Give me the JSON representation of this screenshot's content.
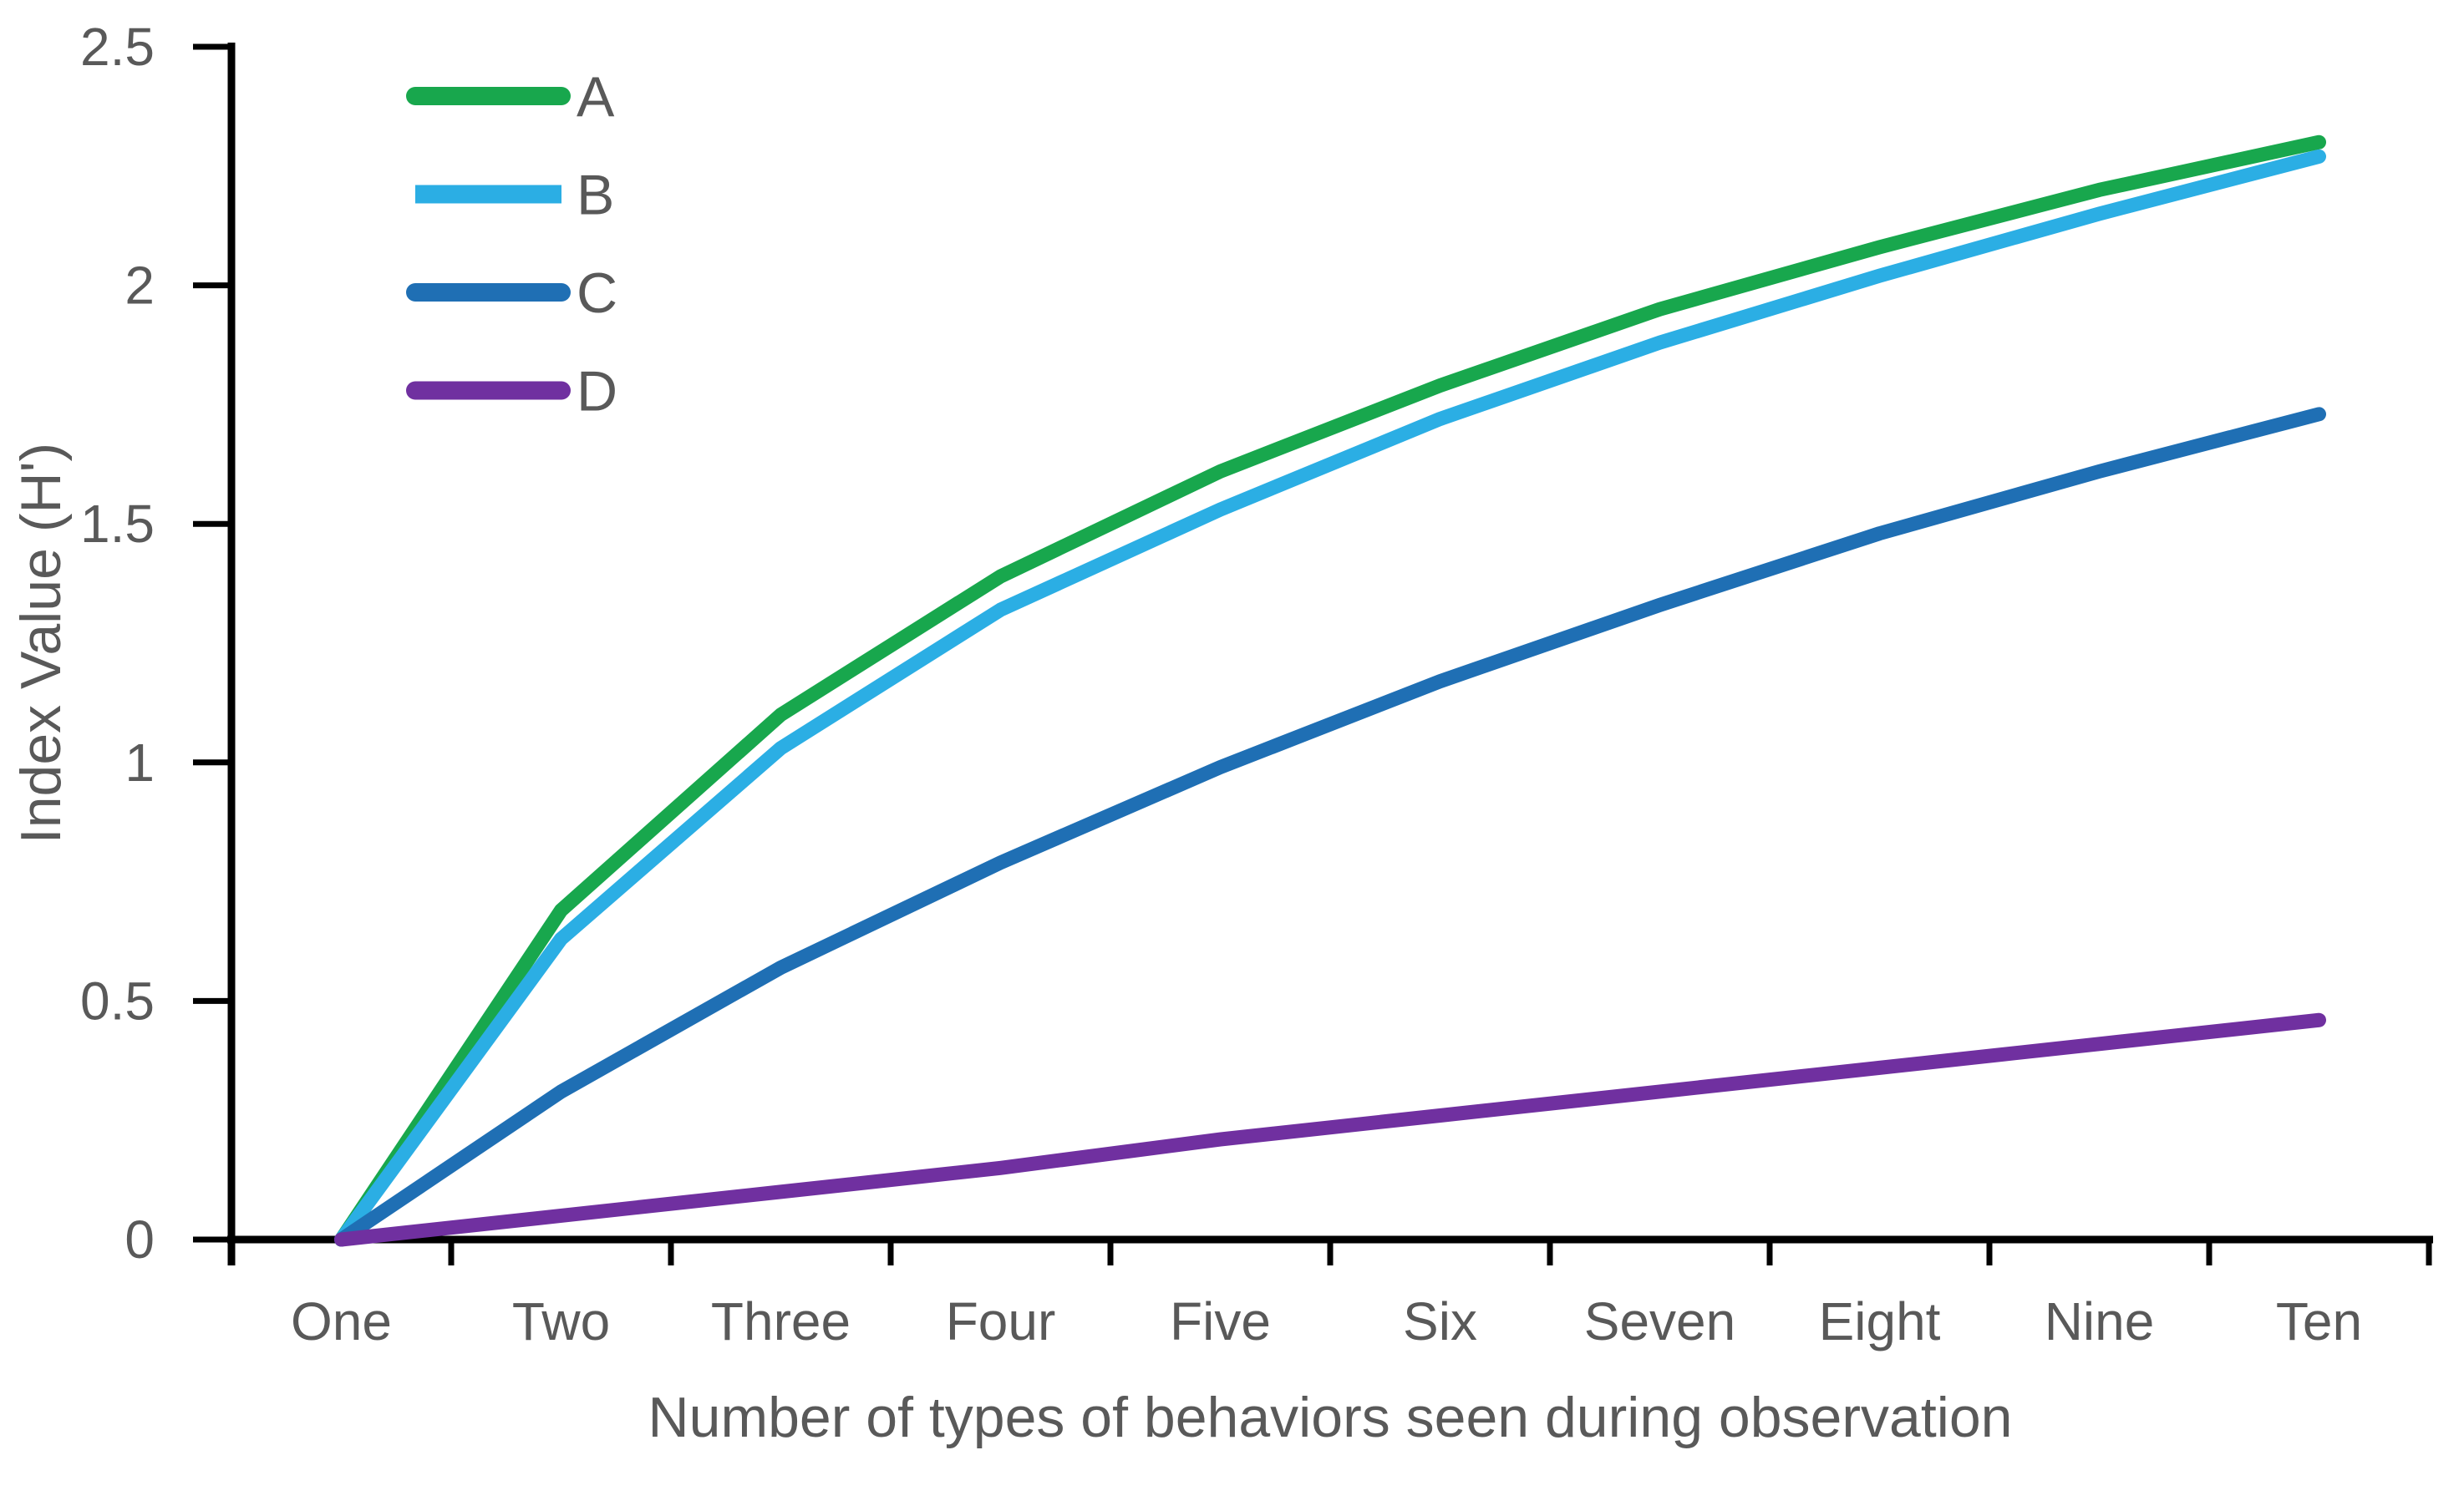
{
  "chart_data": {
    "type": "line",
    "title": "",
    "xlabel": "Number of types of behaviors seen during observation",
    "ylabel": "Index Value (H')",
    "categories": [
      "One",
      "Two",
      "Three",
      "Four",
      "Five",
      "Six",
      "Seven",
      "Eight",
      "Nine",
      "Ten"
    ],
    "series": [
      {
        "name": "A",
        "color": "#18A74D",
        "cap": "round",
        "values": [
          0,
          0.69,
          1.1,
          1.39,
          1.61,
          1.79,
          1.95,
          2.08,
          2.2,
          2.3
        ]
      },
      {
        "name": "B",
        "color": "#2BAEE4",
        "cap": "butt",
        "values": [
          0,
          0.63,
          1.03,
          1.32,
          1.53,
          1.72,
          1.88,
          2.02,
          2.15,
          2.27
        ]
      },
      {
        "name": "C",
        "color": "#1F6FB4",
        "cap": "round",
        "values": [
          0,
          0.31,
          0.57,
          0.79,
          0.99,
          1.17,
          1.33,
          1.48,
          1.61,
          1.73
        ]
      },
      {
        "name": "D",
        "color": "#7030A0",
        "cap": "round",
        "values": [
          0,
          0.05,
          0.1,
          0.15,
          0.21,
          0.26,
          0.31,
          0.36,
          0.41,
          0.46
        ]
      }
    ],
    "ylim": [
      0,
      2.5
    ],
    "yticks": [
      "0",
      "0.5",
      "1",
      "1.5",
      "2",
      "2.5"
    ],
    "grid": false,
    "legend_position": "top-left",
    "axis_color": "#000000",
    "text_color": "#595959",
    "background_color": "#FFFFFF"
  }
}
